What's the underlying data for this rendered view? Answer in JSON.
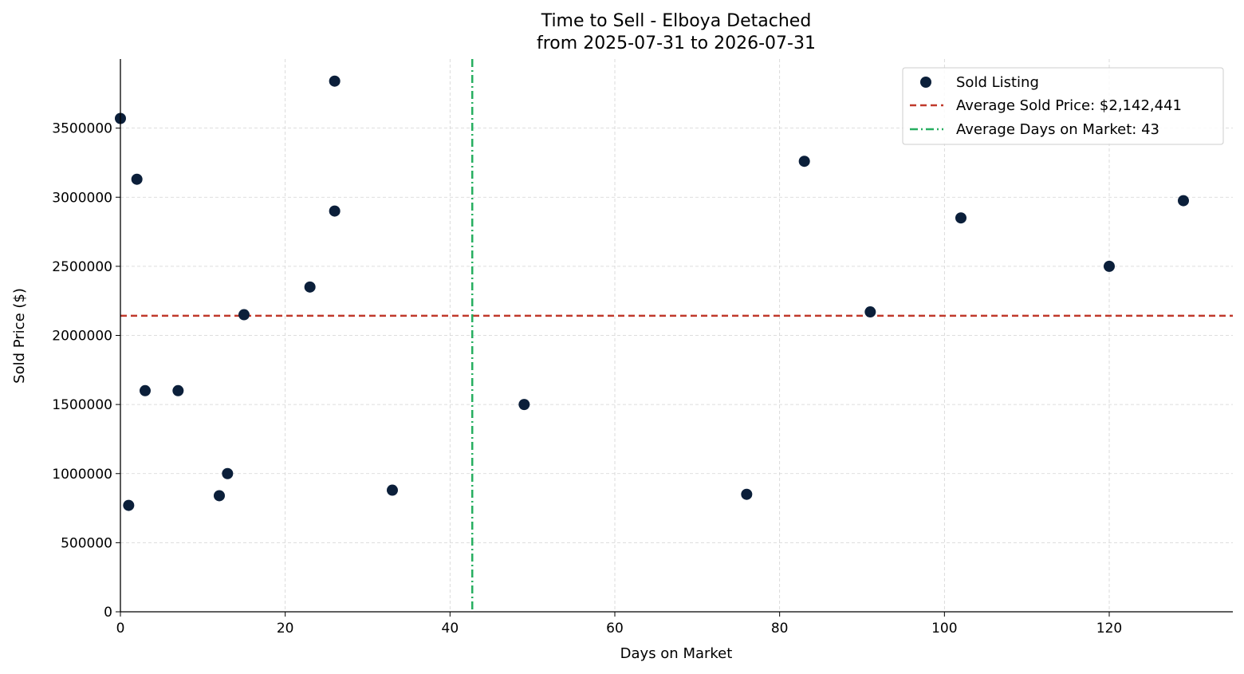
{
  "chart_data": {
    "type": "scatter",
    "title_line1": "Time to Sell - Elboya Detached",
    "title_line2": "from 2025-07-31 to 2026-07-31",
    "xlabel": "Days on Market",
    "ylabel": "Sold Price ($)",
    "xlim": [
      0,
      135
    ],
    "ylim": [
      0,
      4000000
    ],
    "x_ticks": [
      0,
      20,
      40,
      60,
      80,
      100,
      120
    ],
    "x_tick_labels": [
      "0",
      "20",
      "40",
      "60",
      "80",
      "100",
      "120"
    ],
    "y_ticks": [
      0,
      500000,
      1000000,
      1500000,
      2000000,
      2500000,
      3000000,
      3500000
    ],
    "y_tick_labels": [
      "0",
      "500000",
      "1000000",
      "1500000",
      "2000000",
      "2500000",
      "3000000",
      "3500000"
    ],
    "grid": true,
    "legend_position": "top-right",
    "series": [
      {
        "name": "Sold Listing",
        "color": "#0b1f3a",
        "points": [
          {
            "x": 0,
            "y": 3570000
          },
          {
            "x": 1,
            "y": 770000
          },
          {
            "x": 2,
            "y": 3130000
          },
          {
            "x": 3,
            "y": 1600000
          },
          {
            "x": 7,
            "y": 1600000
          },
          {
            "x": 12,
            "y": 840000
          },
          {
            "x": 13,
            "y": 1000000
          },
          {
            "x": 15,
            "y": 2150000
          },
          {
            "x": 23,
            "y": 2350000
          },
          {
            "x": 26,
            "y": 3840000
          },
          {
            "x": 26,
            "y": 2900000
          },
          {
            "x": 33,
            "y": 880000
          },
          {
            "x": 49,
            "y": 1500000
          },
          {
            "x": 76,
            "y": 850000
          },
          {
            "x": 83,
            "y": 3260000
          },
          {
            "x": 91,
            "y": 2170000
          },
          {
            "x": 102,
            "y": 2850000
          },
          {
            "x": 120,
            "y": 2500000
          },
          {
            "x": 129,
            "y": 2975000
          }
        ]
      }
    ],
    "reference_lines": {
      "avg_price": {
        "label": "Average Sold Price: $2,142,441",
        "value": 2142441,
        "color": "#c0392b"
      },
      "avg_days": {
        "label": "Average Days on Market: 43",
        "value": 42.7,
        "color": "#27ae60"
      }
    }
  }
}
